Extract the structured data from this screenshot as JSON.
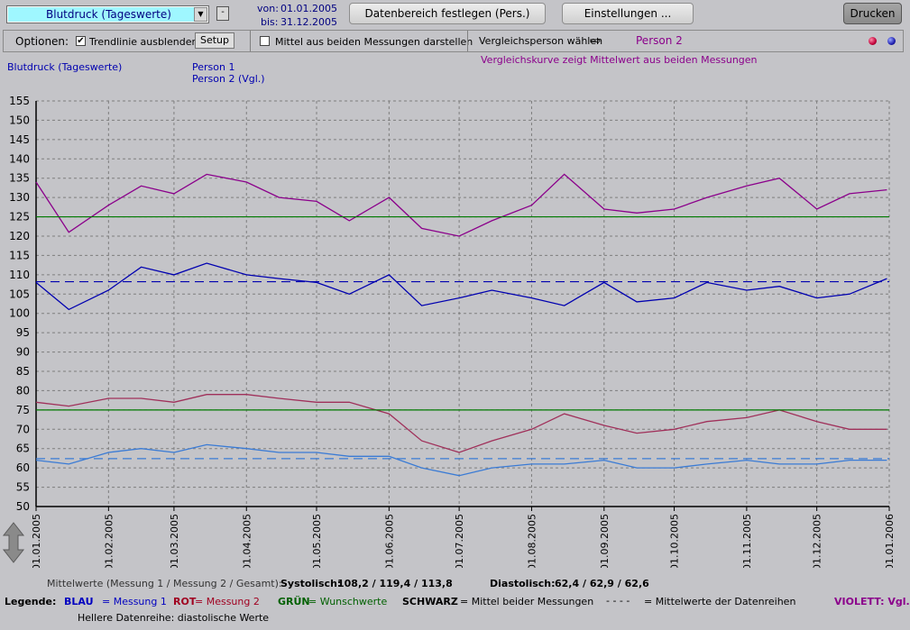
{
  "toolbar": {
    "dataset": "Blutdruck (Tageswerte)",
    "minus": "-",
    "von_label": "von:",
    "von_date": "01.01.2005",
    "bis_label": "bis:",
    "bis_date": "31.12.2005",
    "range_btn": "Datenbereich festlegen (Pers.)",
    "settings_btn": "Einstellungen ...",
    "print_btn": "Drucken"
  },
  "options": {
    "label": "Optionen:",
    "trend": "Trendlinie ausblenden",
    "trend_checked": true,
    "setup": "Setup",
    "mean": "Mittel aus beiden Messungen darstellen",
    "mean_checked": false,
    "compare": "Vergleichsperson wählen",
    "compare_person": "Person 2",
    "indicators": [
      "#c0003a",
      "#2020b0"
    ]
  },
  "header": {
    "chart_title": "Blutdruck (Tageswerte)",
    "person1": "Person 1",
    "person2": "Person 2 (Vgl.)",
    "compare_note": "Vergleichskurve zeigt Mittelwert aus beiden Messungen"
  },
  "footer": {
    "means_label": "Mittelwerte (Messung 1 / Messung 2 / Gesamt):",
    "sys_label": "Systolisch:",
    "sys_values": "108,2 / 119,4 / 113,8",
    "dia_label": "Diastolisch:",
    "dia_values": "62,4  /  62,9  /  62,6",
    "legend_label": "Legende:",
    "legend_blue_key": "BLAU",
    "legend_blue_text": "= Messung 1",
    "legend_red_key": "ROT",
    "legend_red_text": "= Messung 2",
    "legend_green_key": "GRÜN",
    "legend_green_text": "= Wunschwerte",
    "legend_black_key": "SCHWARZ",
    "legend_black_text": "= Mittel beider Messungen",
    "legend_dash_key": "- - - -",
    "legend_dash_text": "= Mittelwerte der Datenreihen",
    "legend_violet": "VIOLETT: Vgl.",
    "note": "Hellere Datenreihe: diastolische Werte"
  },
  "chart_data": {
    "type": "line",
    "title": "Blutdruck (Tageswerte)",
    "xlabel": "",
    "ylabel": "",
    "ylim": [
      50,
      155
    ],
    "yticks": [
      50,
      55,
      60,
      65,
      70,
      75,
      80,
      85,
      90,
      95,
      100,
      105,
      110,
      115,
      120,
      125,
      130,
      135,
      140,
      145,
      150,
      155
    ],
    "xticks": [
      "01.01.2005",
      "01.02.2005",
      "01.03.2005",
      "01.04.2005",
      "01.05.2005",
      "01.06.2005",
      "01.07.2005",
      "01.08.2005",
      "01.09.2005",
      "01.10.2005",
      "01.11.2005",
      "01.12.2005",
      "01.01.2006"
    ],
    "grid": true,
    "target_lines": [
      {
        "value": 125,
        "color": "#007a00"
      },
      {
        "value": 75,
        "color": "#007a00"
      }
    ],
    "mean_lines": [
      {
        "value": 108.2,
        "color": "#0000b0"
      },
      {
        "value": 62.4,
        "color": "#3a7bd5"
      }
    ],
    "series": [
      {
        "color": "#8b008b",
        "points": [
          [
            "01.01.2005",
            134
          ],
          [
            "15.01.2005",
            121
          ],
          [
            "01.02.2005",
            128
          ],
          [
            "15.02.2005",
            133
          ],
          [
            "01.03.2005",
            131
          ],
          [
            "15.03.2005",
            136
          ],
          [
            "01.04.2005",
            134
          ],
          [
            "15.04.2005",
            130
          ],
          [
            "01.05.2005",
            129
          ],
          [
            "15.05.2005",
            124
          ],
          [
            "01.06.2005",
            130
          ],
          [
            "15.06.2005",
            122
          ],
          [
            "01.07.2005",
            120
          ],
          [
            "15.07.2005",
            124
          ],
          [
            "01.08.2005",
            128
          ],
          [
            "15.08.2005",
            136
          ],
          [
            "01.09.2005",
            127
          ],
          [
            "15.09.2005",
            126
          ],
          [
            "01.10.2005",
            127
          ],
          [
            "15.10.2005",
            130
          ],
          [
            "01.11.2005",
            133
          ],
          [
            "15.11.2005",
            135
          ],
          [
            "01.12.2005",
            127
          ],
          [
            "15.12.2005",
            131
          ],
          [
            "31.12.2005",
            132
          ]
        ]
      },
      {
        "color": "#0000b0",
        "points": [
          [
            "01.01.2005",
            108
          ],
          [
            "15.01.2005",
            101
          ],
          [
            "01.02.2005",
            106
          ],
          [
            "15.02.2005",
            112
          ],
          [
            "01.03.2005",
            110
          ],
          [
            "15.03.2005",
            113
          ],
          [
            "01.04.2005",
            110
          ],
          [
            "15.04.2005",
            109
          ],
          [
            "01.05.2005",
            108
          ],
          [
            "15.05.2005",
            105
          ],
          [
            "01.06.2005",
            110
          ],
          [
            "15.06.2005",
            102
          ],
          [
            "01.07.2005",
            104
          ],
          [
            "15.07.2005",
            106
          ],
          [
            "01.08.2005",
            104
          ],
          [
            "15.08.2005",
            102
          ],
          [
            "01.09.2005",
            108
          ],
          [
            "15.09.2005",
            103
          ],
          [
            "01.10.2005",
            104
          ],
          [
            "15.10.2005",
            108
          ],
          [
            "01.11.2005",
            106
          ],
          [
            "15.11.2005",
            107
          ],
          [
            "01.12.2005",
            104
          ],
          [
            "15.12.2005",
            105
          ],
          [
            "31.12.2005",
            109
          ]
        ]
      },
      {
        "color": "#a0305a",
        "points": [
          [
            "01.01.2005",
            77
          ],
          [
            "15.01.2005",
            76
          ],
          [
            "01.02.2005",
            78
          ],
          [
            "15.02.2005",
            78
          ],
          [
            "01.03.2005",
            77
          ],
          [
            "15.03.2005",
            79
          ],
          [
            "01.04.2005",
            79
          ],
          [
            "15.04.2005",
            78
          ],
          [
            "01.05.2005",
            77
          ],
          [
            "15.05.2005",
            77
          ],
          [
            "01.06.2005",
            74
          ],
          [
            "15.06.2005",
            67
          ],
          [
            "01.07.2005",
            64
          ],
          [
            "15.07.2005",
            67
          ],
          [
            "01.08.2005",
            70
          ],
          [
            "15.08.2005",
            74
          ],
          [
            "01.09.2005",
            71
          ],
          [
            "15.09.2005",
            69
          ],
          [
            "01.10.2005",
            70
          ],
          [
            "15.10.2005",
            72
          ],
          [
            "01.11.2005",
            73
          ],
          [
            "15.11.2005",
            75
          ],
          [
            "01.12.2005",
            72
          ],
          [
            "15.12.2005",
            70
          ],
          [
            "31.12.2005",
            70
          ]
        ]
      },
      {
        "color": "#3a7bd5",
        "points": [
          [
            "01.01.2005",
            62
          ],
          [
            "15.01.2005",
            61
          ],
          [
            "01.02.2005",
            64
          ],
          [
            "15.02.2005",
            65
          ],
          [
            "01.03.2005",
            64
          ],
          [
            "15.03.2005",
            66
          ],
          [
            "01.04.2005",
            65
          ],
          [
            "15.04.2005",
            64
          ],
          [
            "01.05.2005",
            64
          ],
          [
            "15.05.2005",
            63
          ],
          [
            "01.06.2005",
            63
          ],
          [
            "15.06.2005",
            60
          ],
          [
            "01.07.2005",
            58
          ],
          [
            "15.07.2005",
            60
          ],
          [
            "01.08.2005",
            61
          ],
          [
            "15.08.2005",
            61
          ],
          [
            "01.09.2005",
            62
          ],
          [
            "15.09.2005",
            60
          ],
          [
            "01.10.2005",
            60
          ],
          [
            "15.10.2005",
            61
          ],
          [
            "01.11.2005",
            62
          ],
          [
            "15.11.2005",
            61
          ],
          [
            "01.12.2005",
            61
          ],
          [
            "15.12.2005",
            62
          ],
          [
            "31.12.2005",
            62
          ]
        ]
      }
    ]
  }
}
